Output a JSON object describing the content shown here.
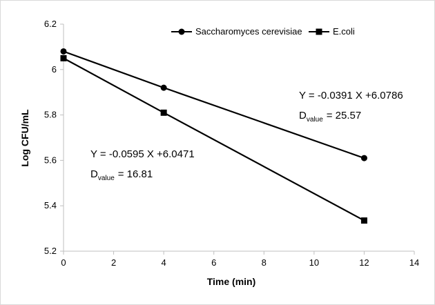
{
  "chart_data": {
    "type": "line",
    "xlabel": "Time (min)",
    "ylabel": "Log CFU/mL",
    "xlim": [
      0,
      14
    ],
    "ylim": [
      5.2,
      6.2
    ],
    "x_ticks": [
      "0",
      "2",
      "4",
      "6",
      "8",
      "10",
      "12",
      "14"
    ],
    "y_ticks": [
      "5.2",
      "5.4",
      "5.6",
      "5.8",
      "6",
      "6.2"
    ],
    "grid": false,
    "legend_position": "top-right",
    "series": [
      {
        "name": "Saccharomyces cerevisiae",
        "marker": "circle",
        "x": [
          0,
          4,
          12
        ],
        "y": [
          6.08,
          5.92,
          5.61
        ],
        "equation": "Y = -0.0391 X +6.0786",
        "d_label": "D",
        "d_subscript": "value",
        "d_value": "=  25.57"
      },
      {
        "name": "E.coli",
        "marker": "square",
        "x": [
          0,
          4,
          12
        ],
        "y": [
          6.05,
          5.81,
          5.335
        ],
        "equation": "Y = -0.0595 X +6.0471",
        "d_label": "D",
        "d_subscript": "value",
        "d_value": "=  16.81"
      }
    ],
    "colors": {
      "line": "#000000",
      "axis": "#bfbfbf"
    }
  }
}
